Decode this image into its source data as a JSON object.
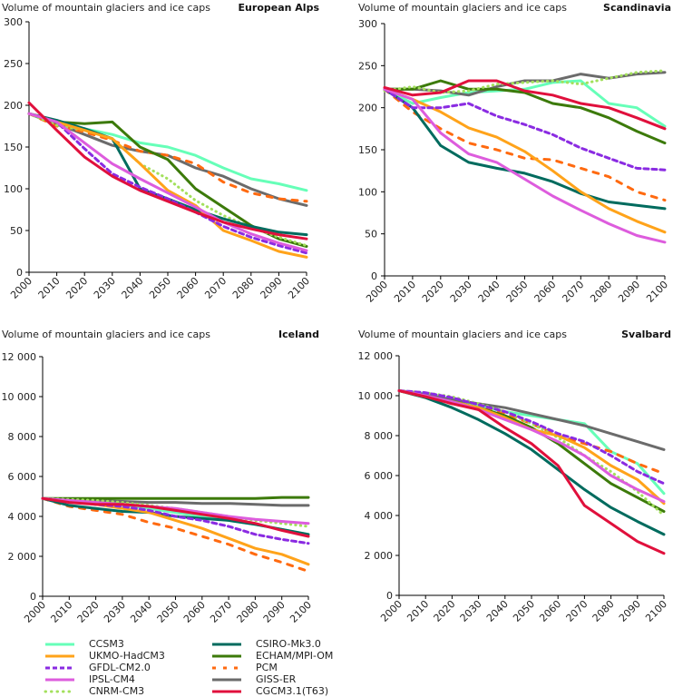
{
  "legend": {
    "series": [
      {
        "name": "CCSM3",
        "color": "#66FFB8",
        "style": "solid"
      },
      {
        "name": "UKMO-HadCM3",
        "color": "#FFA31A",
        "style": "solid"
      },
      {
        "name": "GFDL-CM2.0",
        "color": "#8A2BE2",
        "style": "dashed"
      },
      {
        "name": "IPSL-CM4",
        "color": "#DD5CDD",
        "style": "solid"
      },
      {
        "name": "CNRM-CM3",
        "color": "#A3E05C",
        "style": "dotted"
      },
      {
        "name": "CSIRO-Mk3.0",
        "color": "#006B5E",
        "style": "solid"
      },
      {
        "name": "ECHAM/MPI-OM",
        "color": "#3C7A0A",
        "style": "solid"
      },
      {
        "name": "PCM",
        "color": "#FF6A10",
        "style": "dashed-wide"
      },
      {
        "name": "GISS-ER",
        "color": "#6B6B6B",
        "style": "solid"
      },
      {
        "name": "CGCM3.1(T63)",
        "color": "#E0103C",
        "style": "solid"
      }
    ]
  },
  "chart_data": [
    {
      "type": "line",
      "title": "Volume of mountain glaciers and ice caps",
      "region": "European Alps",
      "xlabel": "",
      "ylabel": "",
      "x": [
        2000,
        2010,
        2020,
        2030,
        2040,
        2050,
        2060,
        2070,
        2080,
        2090,
        2100
      ],
      "xticks": [
        "2000",
        "2010",
        "2020",
        "2030",
        "2040",
        "2050",
        "2060",
        "2070",
        "2080",
        "2090",
        "2100"
      ],
      "yticks": [
        "0",
        "50",
        "100",
        "150",
        "200",
        "250",
        "300"
      ],
      "ylim": [
        0,
        300
      ],
      "series": [
        {
          "name": "CCSM3",
          "values": [
            190,
            176,
            172,
            165,
            155,
            150,
            140,
            125,
            112,
            106,
            98
          ]
        },
        {
          "name": "UKMO-HadCM3",
          "values": [
            190,
            180,
            170,
            160,
            130,
            98,
            80,
            50,
            38,
            25,
            18
          ]
        },
        {
          "name": "GFDL-CM2.0",
          "values": [
            190,
            180,
            148,
            118,
            102,
            88,
            72,
            55,
            42,
            32,
            23
          ]
        },
        {
          "name": "IPSL-CM4",
          "values": [
            190,
            180,
            155,
            130,
            112,
            95,
            78,
            60,
            46,
            35,
            26
          ]
        },
        {
          "name": "CNRM-CM3",
          "values": [
            190,
            176,
            170,
            160,
            130,
            112,
            86,
            68,
            54,
            42,
            32
          ]
        },
        {
          "name": "CSIRO-Mk3.0",
          "values": [
            190,
            182,
            172,
            160,
            100,
            88,
            75,
            64,
            55,
            48,
            45
          ]
        },
        {
          "name": "ECHAM/MPI-OM",
          "values": [
            190,
            180,
            178,
            180,
            150,
            135,
            100,
            78,
            56,
            40,
            31
          ]
        },
        {
          "name": "PCM",
          "values": [
            190,
            175,
            168,
            158,
            145,
            140,
            130,
            108,
            95,
            88,
            85
          ]
        },
        {
          "name": "GISS-ER",
          "values": [
            190,
            178,
            165,
            152,
            145,
            140,
            125,
            115,
            100,
            88,
            80
          ]
        },
        {
          "name": "CGCM3.1(T63)",
          "values": [
            203,
            170,
            138,
            115,
            98,
            85,
            72,
            60,
            52,
            45,
            40
          ]
        }
      ]
    },
    {
      "type": "line",
      "title": "Volume of mountain glaciers and ice caps",
      "region": "Scandinavia",
      "xlabel": "",
      "ylabel": "",
      "x": [
        2000,
        2010,
        2020,
        2030,
        2040,
        2050,
        2060,
        2070,
        2080,
        2090,
        2100
      ],
      "xticks": [
        "2000",
        "2010",
        "2020",
        "2030",
        "2040",
        "2050",
        "2060",
        "2070",
        "2080",
        "2090",
        "2100"
      ],
      "yticks": [
        "0",
        "50",
        "100",
        "150",
        "200",
        "250",
        "300"
      ],
      "ylim": [
        0,
        300
      ],
      "series": [
        {
          "name": "CCSM3",
          "values": [
            222,
            205,
            212,
            218,
            220,
            222,
            230,
            232,
            205,
            200,
            178
          ]
        },
        {
          "name": "UKMO-HadCM3",
          "values": [
            222,
            210,
            195,
            176,
            165,
            148,
            125,
            100,
            80,
            65,
            52
          ]
        },
        {
          "name": "GFDL-CM2.0",
          "values": [
            222,
            200,
            200,
            205,
            190,
            180,
            168,
            152,
            140,
            128,
            126
          ]
        },
        {
          "name": "IPSL-CM4",
          "values": [
            222,
            210,
            170,
            145,
            135,
            115,
            95,
            78,
            62,
            48,
            40
          ]
        },
        {
          "name": "CNRM-CM3",
          "values": [
            220,
            225,
            218,
            220,
            228,
            230,
            232,
            228,
            235,
            242,
            244
          ]
        },
        {
          "name": "CSIRO-Mk3.0",
          "values": [
            222,
            200,
            155,
            135,
            128,
            122,
            112,
            98,
            88,
            84,
            80
          ]
        },
        {
          "name": "ECHAM/MPI-OM",
          "values": [
            222,
            222,
            232,
            222,
            222,
            218,
            205,
            200,
            188,
            172,
            158
          ]
        },
        {
          "name": "PCM",
          "values": [
            222,
            195,
            175,
            158,
            150,
            140,
            138,
            128,
            118,
            100,
            90
          ]
        },
        {
          "name": "GISS-ER",
          "values": [
            222,
            222,
            220,
            215,
            225,
            232,
            232,
            240,
            235,
            240,
            242
          ]
        },
        {
          "name": "CGCM3.1(T63)",
          "values": [
            224,
            215,
            218,
            232,
            232,
            220,
            215,
            205,
            200,
            188,
            175
          ]
        }
      ]
    },
    {
      "type": "line",
      "title": "Volume of mountain glaciers and ice caps",
      "region": "Iceland",
      "xlabel": "",
      "ylabel": "",
      "x": [
        2000,
        2010,
        2020,
        2030,
        2040,
        2050,
        2060,
        2070,
        2080,
        2090,
        2100
      ],
      "xticks": [
        "2000",
        "2010",
        "2020",
        "2030",
        "2040",
        "2050",
        "2060",
        "2070",
        "2080",
        "2090",
        "2100"
      ],
      "yticks": [
        "0",
        "2 000",
        "4 000",
        "6 000",
        "8 000",
        "10 000",
        "12 000"
      ],
      "ylim": [
        0,
        12000
      ],
      "series": [
        {
          "name": "CCSM3",
          "values": [
            4900,
            4800,
            4700,
            4550,
            4400,
            4200,
            4000,
            3800,
            3600,
            3350,
            3100
          ]
        },
        {
          "name": "UKMO-HadCM3",
          "values": [
            4900,
            4750,
            4600,
            4400,
            4200,
            3800,
            3400,
            2900,
            2400,
            2100,
            1600
          ]
        },
        {
          "name": "GFDL-CM2.0",
          "values": [
            4900,
            4750,
            4600,
            4500,
            4300,
            4000,
            3800,
            3500,
            3100,
            2850,
            2650
          ]
        },
        {
          "name": "IPSL-CM4",
          "values": [
            4900,
            4800,
            4700,
            4600,
            4500,
            4400,
            4200,
            4000,
            3850,
            3750,
            3650
          ]
        },
        {
          "name": "CNRM-CM3",
          "values": [
            4900,
            4850,
            4800,
            4700,
            4550,
            4400,
            4200,
            4000,
            3800,
            3650,
            3500
          ]
        },
        {
          "name": "CSIRO-Mk3.0",
          "values": [
            4900,
            4550,
            4400,
            4250,
            4200,
            4000,
            3900,
            3800,
            3600,
            3350,
            3100
          ]
        },
        {
          "name": "ECHAM/MPI-OM",
          "values": [
            4900,
            4900,
            4900,
            4900,
            4900,
            4900,
            4900,
            4900,
            4900,
            4950,
            4950
          ]
        },
        {
          "name": "PCM",
          "values": [
            4900,
            4500,
            4300,
            4100,
            3700,
            3400,
            3000,
            2600,
            2100,
            1700,
            1250
          ]
        },
        {
          "name": "GISS-ER",
          "values": [
            4900,
            4850,
            4800,
            4750,
            4700,
            4700,
            4650,
            4650,
            4600,
            4550,
            4550
          ]
        },
        {
          "name": "CGCM3.1(T63)",
          "values": [
            4900,
            4700,
            4600,
            4600,
            4500,
            4300,
            4100,
            3900,
            3650,
            3300,
            3000
          ]
        }
      ]
    },
    {
      "type": "line",
      "title": "Volume of mountain glaciers and ice caps",
      "region": "Svalbard",
      "xlabel": "",
      "ylabel": "",
      "x": [
        2000,
        2010,
        2020,
        2030,
        2040,
        2050,
        2060,
        2070,
        2080,
        2090,
        2100
      ],
      "xticks": [
        "2000",
        "2010",
        "2020",
        "2030",
        "2040",
        "2050",
        "2060",
        "2070",
        "2080",
        "2090",
        "2100"
      ],
      "yticks": [
        "0",
        "2 000",
        "4 000",
        "6 000",
        "8 000",
        "10 000",
        "12 000"
      ],
      "ylim": [
        0,
        12000
      ],
      "series": [
        {
          "name": "CCSM3",
          "values": [
            10250,
            10100,
            9800,
            9500,
            9200,
            9000,
            8800,
            8600,
            7200,
            6600,
            5100
          ]
        },
        {
          "name": "UKMO-HadCM3",
          "values": [
            10250,
            9950,
            9700,
            9400,
            8900,
            8300,
            8000,
            7400,
            6500,
            5800,
            4600
          ]
        },
        {
          "name": "GFDL-CM2.0",
          "values": [
            10250,
            10150,
            9900,
            9550,
            9200,
            8700,
            8100,
            7700,
            7000,
            6200,
            5600
          ]
        },
        {
          "name": "IPSL-CM4",
          "values": [
            10250,
            10000,
            9700,
            9300,
            8800,
            8300,
            7700,
            7000,
            6000,
            5300,
            4700
          ]
        },
        {
          "name": "CNRM-CM3",
          "values": [
            10250,
            10150,
            9950,
            9600,
            9200,
            8600,
            7900,
            7000,
            6200,
            5200,
            4000
          ]
        },
        {
          "name": "CSIRO-Mk3.0",
          "values": [
            10250,
            9900,
            9400,
            8800,
            8100,
            7300,
            6300,
            5300,
            4400,
            3700,
            3050
          ]
        },
        {
          "name": "ECHAM/MPI-OM",
          "values": [
            10250,
            10000,
            9700,
            9400,
            9000,
            8400,
            7600,
            6600,
            5600,
            4900,
            4200
          ]
        },
        {
          "name": "PCM",
          "values": [
            10250,
            9900,
            9600,
            9400,
            9100,
            8600,
            8000,
            7600,
            7200,
            6600,
            6100
          ]
        },
        {
          "name": "GISS-ER",
          "values": [
            10250,
            10050,
            9800,
            9600,
            9400,
            9100,
            8800,
            8500,
            8100,
            7700,
            7300
          ]
        },
        {
          "name": "CGCM3.1(T63)",
          "values": [
            10250,
            9950,
            9600,
            9300,
            8400,
            7600,
            6500,
            4500,
            3600,
            2700,
            2100
          ]
        }
      ]
    }
  ]
}
